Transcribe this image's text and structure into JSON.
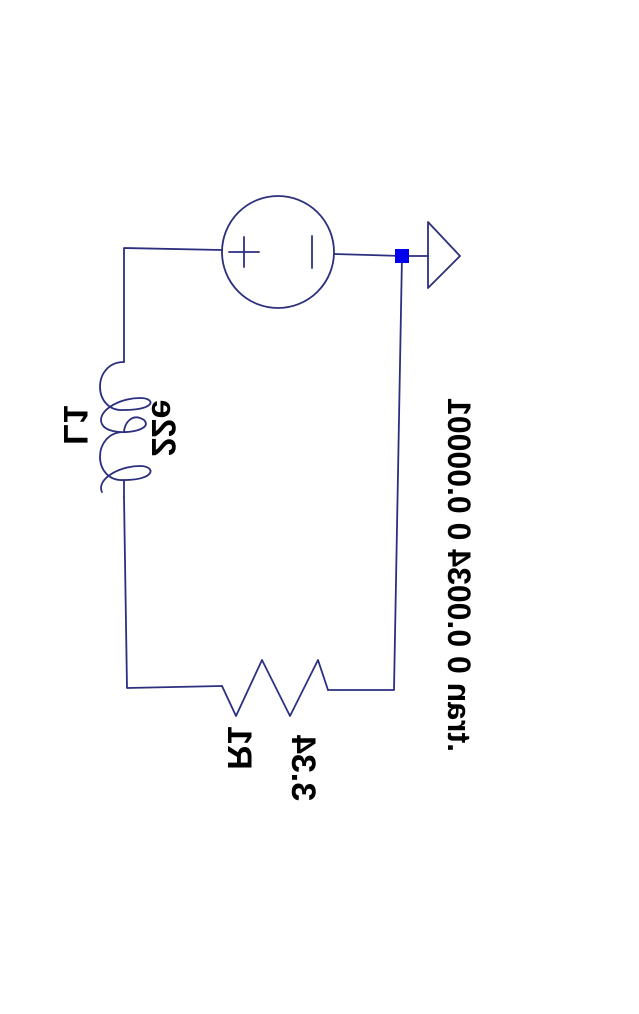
{
  "schematic": {
    "inductor": {
      "name": "L1",
      "value": "22e"
    },
    "resistor": {
      "name": "R1",
      "value": "3.34"
    },
    "source": {
      "plus_sign": "+",
      "minus_sign": "-"
    },
    "directive": ".tran 0 0.0034 0 0.00001"
  },
  "colors": {
    "wire": "#2b2f7e",
    "node": "#0000ee",
    "text": "#000000",
    "background": "#ffffff"
  }
}
